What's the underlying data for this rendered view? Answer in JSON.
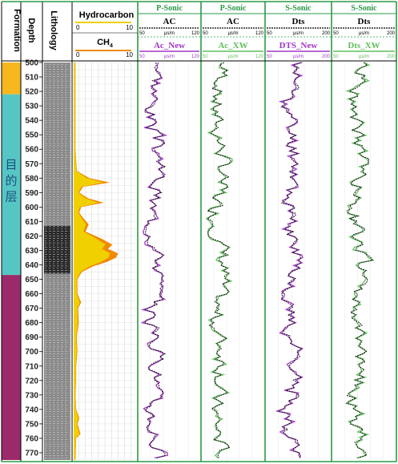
{
  "chart_data": {
    "type": "line",
    "depth": {
      "label": "Depth",
      "range": [
        500,
        775
      ],
      "ticks": [
        500,
        510,
        520,
        530,
        540,
        550,
        560,
        570,
        580,
        590,
        600,
        610,
        620,
        630,
        640,
        650,
        660,
        670,
        680,
        690,
        700,
        710,
        720,
        730,
        740,
        750,
        760,
        770
      ]
    },
    "formation": {
      "label": "Formation",
      "zones": [
        {
          "top": 500,
          "bottom": 522,
          "color": "#f6b81e",
          "label": ""
        },
        {
          "top": 522,
          "bottom": 647,
          "color": "#56c6c4",
          "label": "目的层"
        },
        {
          "top": 647,
          "bottom": 775,
          "color": "#9b2a6a",
          "label": ""
        }
      ]
    },
    "lithology": {
      "label": "Lithology"
    },
    "hydrocarbon": {
      "label": "Hydrocarbon",
      "min": 0,
      "max": 10,
      "color": "#f0d000"
    },
    "ch4": {
      "label": "CH",
      "sub": "4",
      "min": 0,
      "max": 10,
      "color": "#f08a00"
    },
    "hc_profile": [
      [
        500,
        0.3
      ],
      [
        520,
        0.3
      ],
      [
        540,
        0.3
      ],
      [
        560,
        0.3
      ],
      [
        575,
        0.5
      ],
      [
        580,
        2.5
      ],
      [
        583,
        5.8
      ],
      [
        586,
        1.5
      ],
      [
        590,
        0.9
      ],
      [
        594,
        2.3
      ],
      [
        597,
        4.8
      ],
      [
        600,
        1.2
      ],
      [
        604,
        0.9
      ],
      [
        608,
        1.6
      ],
      [
        612,
        2.4
      ],
      [
        617,
        1.9
      ],
      [
        622,
        4.5
      ],
      [
        626,
        6.2
      ],
      [
        629,
        5.5
      ],
      [
        632,
        7.1
      ],
      [
        635,
        6.8
      ],
      [
        638,
        5.3
      ],
      [
        641,
        3.1
      ],
      [
        645,
        1.3
      ],
      [
        650,
        0.6
      ],
      [
        660,
        0.6
      ],
      [
        666,
        1.2
      ],
      [
        670,
        0.7
      ],
      [
        680,
        0.8
      ],
      [
        690,
        0.5
      ],
      [
        700,
        0.6
      ],
      [
        710,
        0.4
      ],
      [
        720,
        0.4
      ],
      [
        730,
        0.3
      ],
      [
        740,
        0.4
      ],
      [
        746,
        0.9
      ],
      [
        750,
        0.6
      ],
      [
        757,
        1.1
      ],
      [
        760,
        0.4
      ],
      [
        775,
        0.3
      ]
    ],
    "tracks": [
      {
        "group": "P-Sonic",
        "name": "AC",
        "name2": "Ac_New",
        "xmin": 50,
        "xmax": 120,
        "unit": "μs/m",
        "color2": "#a335c8",
        "base": 70,
        "seed": 3
      },
      {
        "group": "P-Sonic",
        "name": "AC",
        "name2": "Ac_XW",
        "xmin": 50,
        "xmax": 120,
        "unit": "μs/m",
        "color2": "#5fbf5a",
        "base": 70,
        "seed": 7
      },
      {
        "group": "S-Sonic",
        "name": "Dts",
        "name2": "DTS_New",
        "xmin": 50,
        "xmax": 200,
        "unit": "μs/m",
        "color2": "#a335c8",
        "base": 112,
        "seed": 11
      },
      {
        "group": "S-Sonic",
        "name": "Dts",
        "name2": "Dts_XW",
        "xmin": 50,
        "xmax": 200,
        "unit": "μs/m",
        "color2": "#5fbf5a",
        "base": 112,
        "seed": 19
      }
    ]
  }
}
